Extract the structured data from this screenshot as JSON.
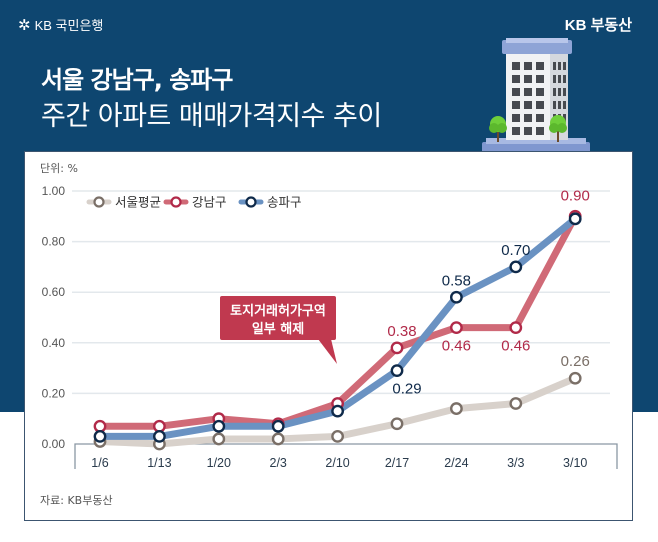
{
  "header": {
    "bank_brand": "KB 국민은행",
    "service_brand": "KB 부동산",
    "title_line1": "서울 강남구, 송파구",
    "title_line2": "주간 아파트 매매가격지수 추이"
  },
  "icons": {
    "bank_logo": "kb-star-icon",
    "illustration": "apartment-building-icon"
  },
  "colors": {
    "background": "#0e4670",
    "seoul": "#d8d1cb",
    "seoul_marker": "#7a6f67",
    "gangnam": "#d06a77",
    "gangnam_marker": "#b12a49",
    "songpa": "#6a92c2",
    "songpa_marker": "#0f2a4a",
    "callout": "#c0394f"
  },
  "chart_data": {
    "type": "line",
    "title": "주간 아파트 매매가격지수 추이",
    "unit_label": "단위: %",
    "source": "자료: KB부동산",
    "categories": [
      "1/6",
      "1/13",
      "1/20",
      "2/3",
      "2/10",
      "2/17",
      "2/24",
      "3/3",
      "3/10"
    ],
    "ylim": [
      0,
      1.0
    ],
    "yticks": [
      "0.00",
      "0.20",
      "0.40",
      "0.60",
      "0.80",
      "1.00"
    ],
    "ytick_values": [
      0,
      0.2,
      0.4,
      0.6,
      0.8,
      1.0
    ],
    "grid": true,
    "legend_position": "top-left",
    "series": [
      {
        "name": "서울평균",
        "key": "seoul",
        "values": [
          0.01,
          0.0,
          0.02,
          0.02,
          0.03,
          0.08,
          0.14,
          0.16,
          0.26
        ]
      },
      {
        "name": "강남구",
        "key": "gangnam",
        "values": [
          0.07,
          0.07,
          0.1,
          0.08,
          0.16,
          0.38,
          0.46,
          0.46,
          0.9
        ]
      },
      {
        "name": "송파구",
        "key": "songpa",
        "values": [
          0.03,
          0.03,
          0.07,
          0.07,
          0.13,
          0.29,
          0.58,
          0.7,
          0.89
        ]
      }
    ],
    "data_labels": [
      {
        "series": "seoul",
        "index": 8,
        "text": "0.26",
        "pos": "above"
      },
      {
        "series": "gangnam",
        "index": 5,
        "text": "0.38",
        "pos": "above"
      },
      {
        "series": "gangnam",
        "index": 6,
        "text": "0.46",
        "pos": "below"
      },
      {
        "series": "gangnam",
        "index": 7,
        "text": "0.46",
        "pos": "below"
      },
      {
        "series": "gangnam",
        "index": 8,
        "text": "0.90",
        "pos": "above"
      },
      {
        "series": "songpa",
        "index": 5,
        "text": "0.29",
        "pos": "below"
      },
      {
        "series": "songpa",
        "index": 6,
        "text": "0.58",
        "pos": "above"
      },
      {
        "series": "songpa",
        "index": 7,
        "text": "0.70",
        "pos": "above"
      }
    ],
    "annotation": {
      "line1": "토지거래허가구역",
      "line2": "일부 해제",
      "at_category": "2/10"
    }
  }
}
